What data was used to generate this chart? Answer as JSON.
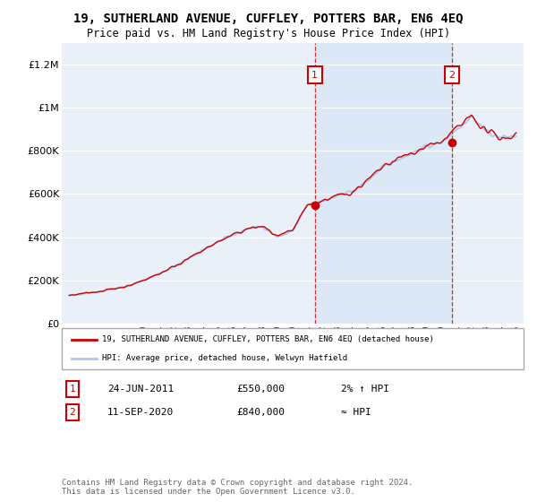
{
  "title": "19, SUTHERLAND AVENUE, CUFFLEY, POTTERS BAR, EN6 4EQ",
  "subtitle": "Price paid vs. HM Land Registry's House Price Index (HPI)",
  "ylim": [
    0,
    1300000
  ],
  "yticks": [
    0,
    200000,
    400000,
    600000,
    800000,
    1000000,
    1200000
  ],
  "hpi_color": "#aec6e8",
  "price_color": "#cc0000",
  "background_color": "#eaf0f8",
  "shade_color": "#dce8f5",
  "marker1_year": 2011.48,
  "marker1_value": 550000,
  "marker2_year": 2020.7,
  "marker2_value": 840000,
  "legend_label1": "19, SUTHERLAND AVENUE, CUFFLEY, POTTERS BAR, EN6 4EQ (detached house)",
  "legend_label2": "HPI: Average price, detached house, Welwyn Hatfield",
  "annotation1_date": "24-JUN-2011",
  "annotation1_price": "£550,000",
  "annotation1_hpi": "2% ↑ HPI",
  "annotation2_date": "11-SEP-2020",
  "annotation2_price": "£840,000",
  "annotation2_hpi": "≈ HPI",
  "footer": "Contains HM Land Registry data © Crown copyright and database right 2024.\nThis data is licensed under the Open Government Licence v3.0.",
  "xmin": 1994.5,
  "xmax": 2025.5
}
